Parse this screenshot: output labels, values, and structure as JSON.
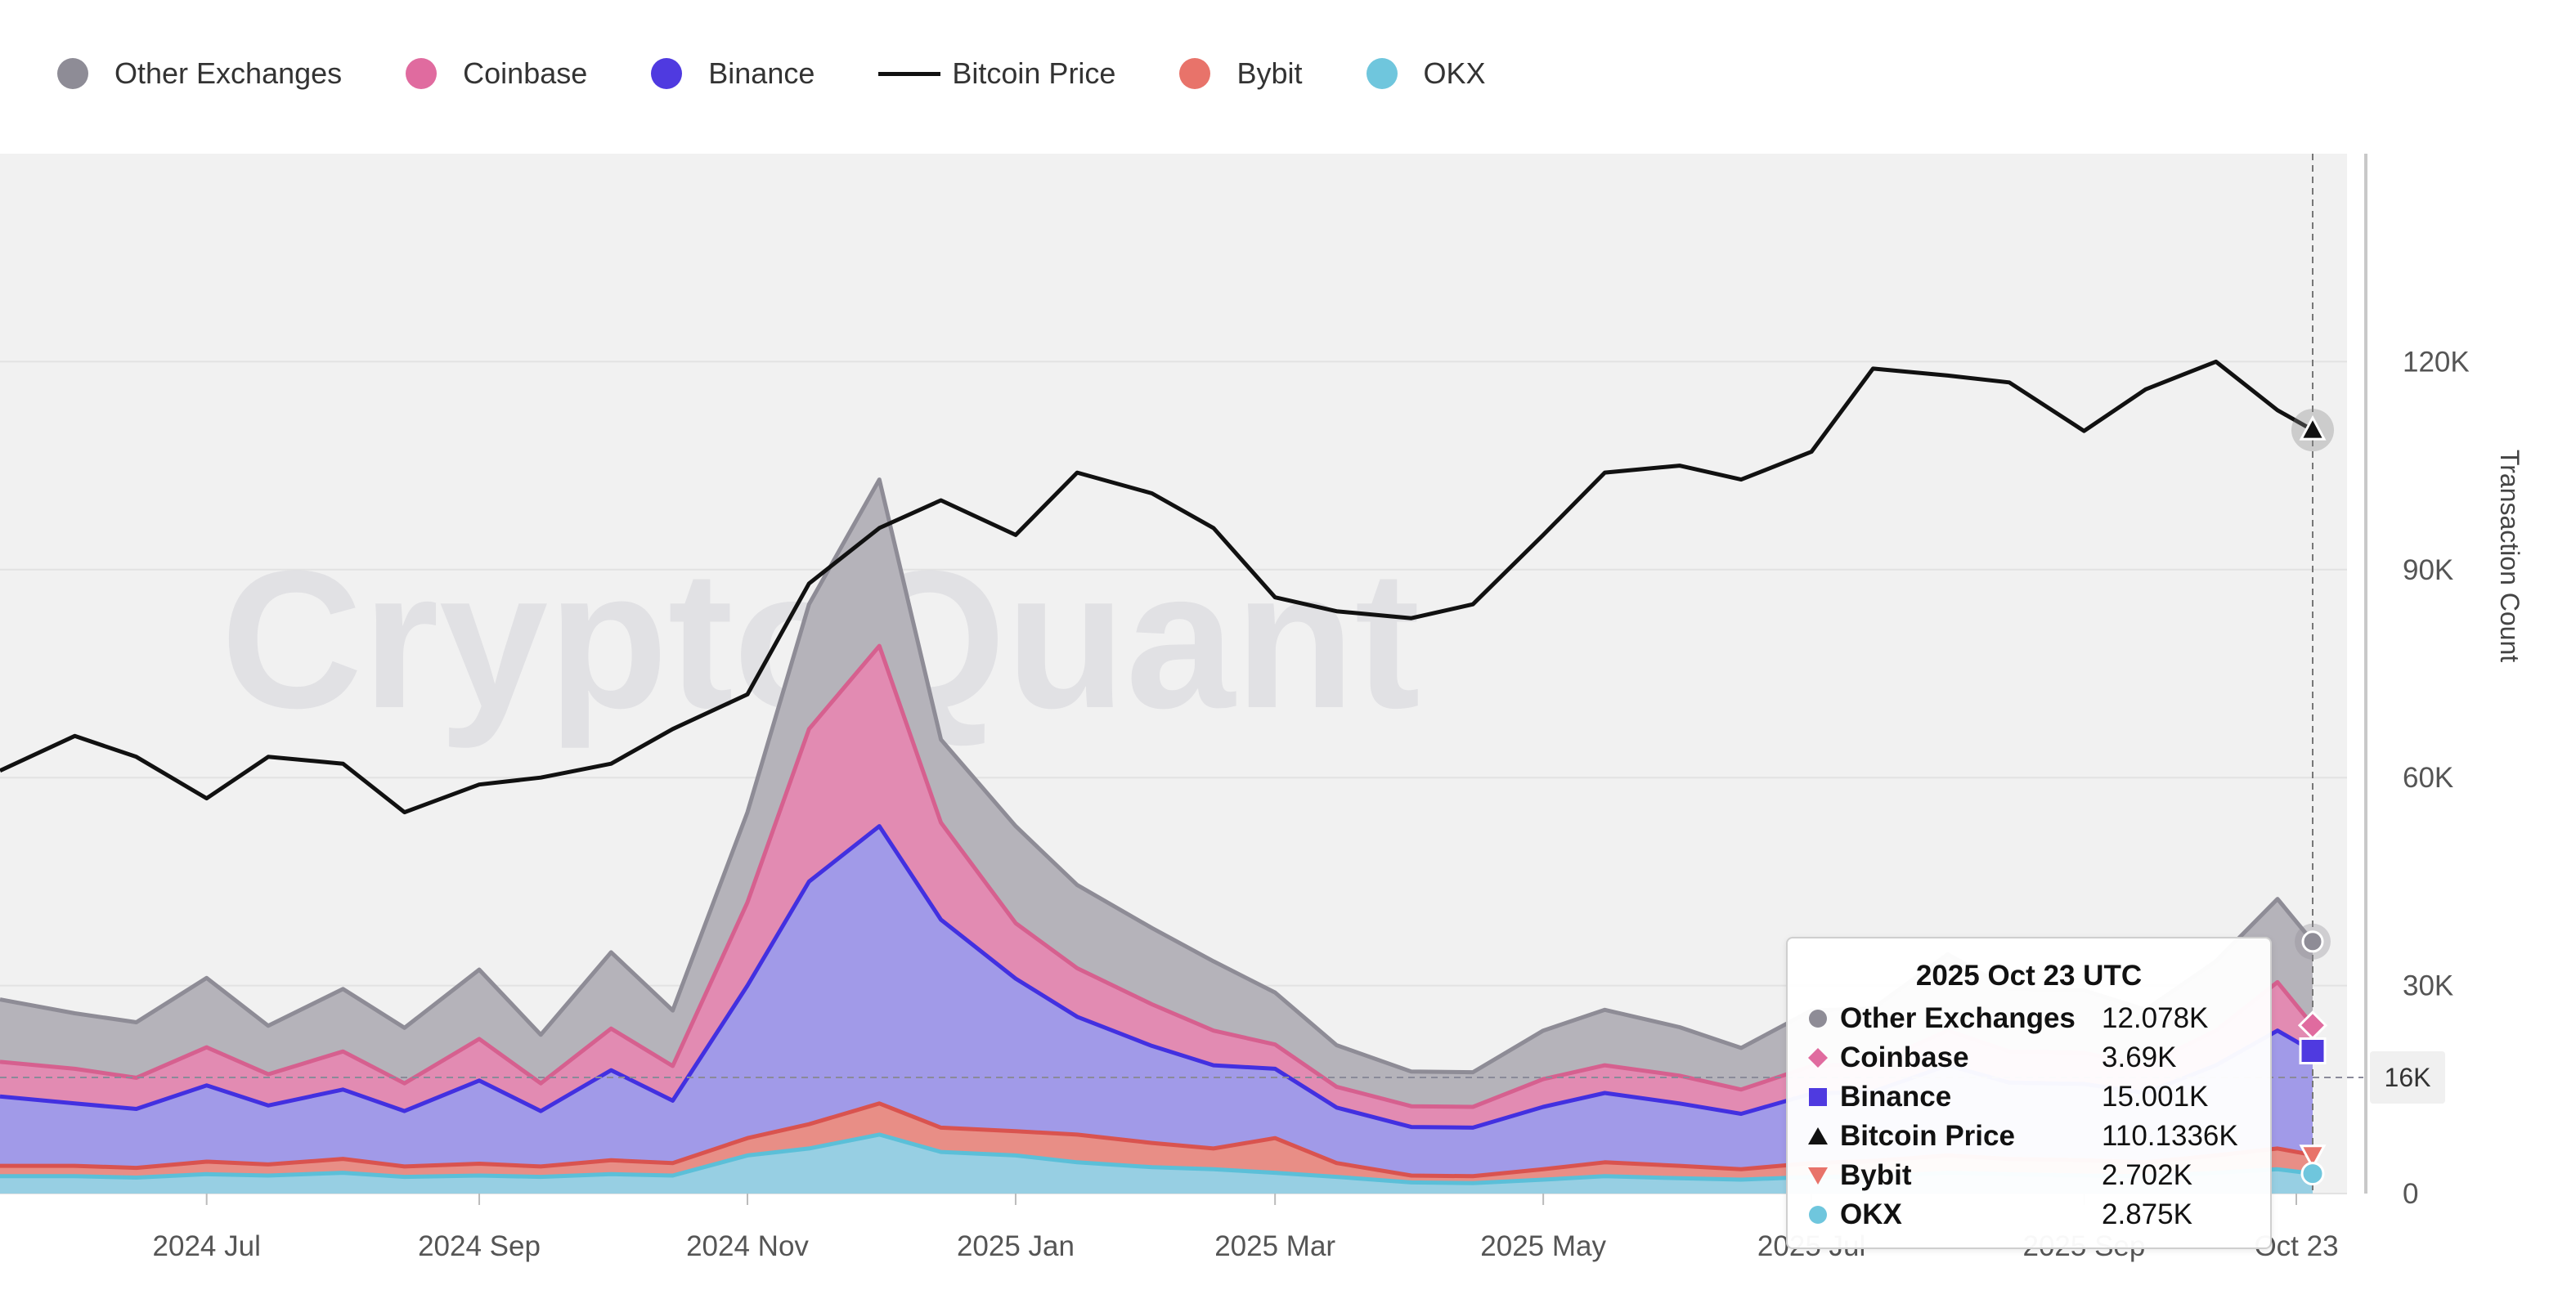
{
  "legend": [
    {
      "label": "Other Exchanges",
      "color": "#8e8c96",
      "shape": "circle"
    },
    {
      "label": "Coinbase",
      "color": "#e06b9f",
      "shape": "circle"
    },
    {
      "label": "Binance",
      "color": "#4f3ae0",
      "shape": "circle"
    },
    {
      "label": "Bitcoin Price",
      "color": "#111111",
      "shape": "line"
    },
    {
      "label": "Bybit",
      "color": "#e8736a",
      "shape": "circle"
    },
    {
      "label": "OKX",
      "color": "#6fc6dd",
      "shape": "circle"
    }
  ],
  "watermark": "CryptoQuant",
  "tooltip": {
    "title": "2025 Oct 23 UTC",
    "rows": [
      {
        "name": "Other Exchanges",
        "value": "12.078K",
        "marker": "circle",
        "color": "#8e8c96"
      },
      {
        "name": "Coinbase",
        "value": "3.69K",
        "marker": "diamond",
        "color": "#e06b9f"
      },
      {
        "name": "Binance",
        "value": "15.001K",
        "marker": "square",
        "color": "#4f3ae0"
      },
      {
        "name": "Bitcoin Price",
        "value": "110.1336K",
        "marker": "triangle-up",
        "color": "#111111"
      },
      {
        "name": "Bybit",
        "value": "2.702K",
        "marker": "triangle-down",
        "color": "#e8736a"
      },
      {
        "name": "OKX",
        "value": "2.875K",
        "marker": "circle",
        "color": "#6fc6dd"
      }
    ]
  },
  "crosshair_value_label": "16K",
  "chart_data": {
    "type": "area",
    "stacked": true,
    "x_tick_labels": [
      "2024 Jul",
      "2024 Sep",
      "2024 Nov",
      "2025 Jan",
      "2025 Mar",
      "2025 May",
      "2025 Jul",
      "2025 Sep",
      "Oct 23"
    ],
    "x": [
      "2024-05-15",
      "2024-06-01",
      "2024-06-15",
      "2024-07-01",
      "2024-07-15",
      "2024-08-01",
      "2024-08-15",
      "2024-09-01",
      "2024-09-15",
      "2024-10-01",
      "2024-10-15",
      "2024-11-01",
      "2024-11-15",
      "2024-12-01",
      "2024-12-15",
      "2025-01-01",
      "2025-01-15",
      "2025-02-01",
      "2025-02-15",
      "2025-03-01",
      "2025-03-15",
      "2025-04-01",
      "2025-04-15",
      "2025-05-01",
      "2025-05-15",
      "2025-06-01",
      "2025-06-15",
      "2025-07-01",
      "2025-07-15",
      "2025-08-01",
      "2025-08-15",
      "2025-09-01",
      "2025-09-15",
      "2025-10-01",
      "2025-10-15",
      "2025-10-23"
    ],
    "series": [
      {
        "name": "OKX",
        "values": [
          2.5,
          2.5,
          2.3,
          2.8,
          2.6,
          3.0,
          2.4,
          2.6,
          2.4,
          2.8,
          2.6,
          5.5,
          6.5,
          8.5,
          6.0,
          5.5,
          4.5,
          3.8,
          3.5,
          3.0,
          2.4,
          1.6,
          1.5,
          2.0,
          2.5,
          2.2,
          2.0,
          2.4,
          2.5,
          3.0,
          2.8,
          2.6,
          2.5,
          3.0,
          3.5,
          2.875
        ]
      },
      {
        "name": "Bybit",
        "values": [
          1.5,
          1.5,
          1.4,
          1.8,
          1.6,
          2.0,
          1.5,
          1.7,
          1.5,
          2.0,
          1.8,
          2.5,
          3.5,
          4.5,
          3.5,
          3.5,
          4.0,
          3.5,
          3.0,
          5.0,
          2.0,
          1.0,
          1.0,
          1.5,
          2.0,
          1.8,
          1.5,
          2.0,
          2.2,
          2.5,
          2.2,
          2.2,
          2.0,
          2.5,
          3.0,
          2.702
        ]
      },
      {
        "name": "Binance",
        "values": [
          10,
          9,
          8.5,
          11,
          8.5,
          10,
          8,
          12,
          8,
          13,
          9,
          22,
          35,
          40,
          30,
          22,
          17,
          14,
          12,
          10,
          8,
          7,
          7,
          9,
          10,
          9,
          8,
          10,
          10,
          13,
          11,
          11,
          10,
          13,
          17,
          15.001
        ]
      },
      {
        "name": "Coinbase",
        "values": [
          5,
          5,
          4.5,
          5.5,
          4.5,
          5.5,
          4,
          6,
          4,
          6,
          5,
          12,
          22,
          26,
          14,
          8,
          7,
          6,
          5,
          3.5,
          3,
          3,
          3,
          4,
          4,
          4,
          3.5,
          4,
          4,
          5,
          4.5,
          4.5,
          4,
          5,
          7,
          3.69
        ]
      },
      {
        "name": "Other Exchanges",
        "values": [
          9,
          8,
          8,
          10,
          7,
          9,
          8,
          10,
          7,
          11,
          8,
          13,
          18,
          24,
          12,
          14,
          12,
          11,
          10,
          7.5,
          6,
          5,
          5,
          7,
          8,
          7,
          6,
          8,
          8,
          11,
          9,
          9,
          8,
          10,
          12,
          12.078
        ]
      }
    ],
    "price_series": {
      "name": "Bitcoin Price",
      "values": [
        61000,
        66000,
        63000,
        57000,
        63000,
        62000,
        55000,
        59000,
        60000,
        62000,
        67000,
        72000,
        88000,
        96000,
        100000,
        95000,
        104000,
        101000,
        96000,
        86000,
        84000,
        83000,
        85000,
        95000,
        104000,
        105000,
        103000,
        107000,
        119000,
        118000,
        117000,
        110000,
        116000,
        120000,
        113000,
        110133.6
      ]
    },
    "y_left": {
      "label": "",
      "ticks": [],
      "note": "stacked transaction counts share the right axis"
    },
    "y_right": {
      "label": "Transaction Count",
      "ticks": [
        "0",
        "30K",
        "60K",
        "90K",
        "120K"
      ],
      "range": [
        0,
        150000
      ]
    },
    "grid": true
  }
}
